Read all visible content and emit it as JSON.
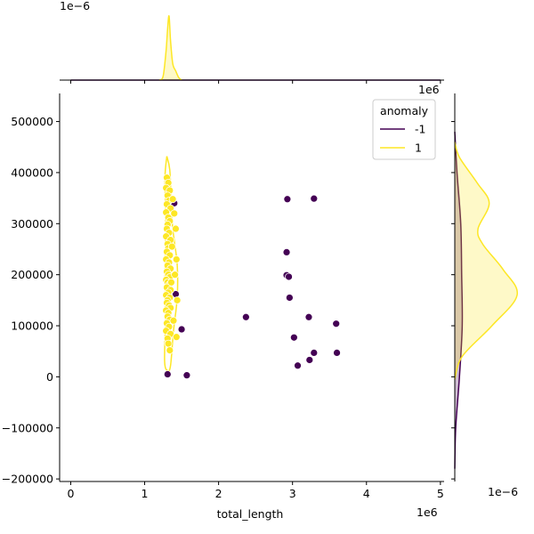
{
  "chart_data": {
    "type": "scatter",
    "kind": "jointplot with marginal KDE",
    "xlabel": "total_length",
    "ylabel": "",
    "xlim": [
      -150000,
      5050000
    ],
    "ylim": [
      -205000,
      555000
    ],
    "x_ticks": [
      0,
      1000000,
      2000000,
      3000000,
      4000000,
      5000000
    ],
    "x_tick_labels": [
      "0",
      "1",
      "2",
      "3",
      "4",
      "5"
    ],
    "x_offset_text": "1e6",
    "y_ticks": [
      -200000,
      -100000,
      0,
      100000,
      200000,
      300000,
      400000,
      500000
    ],
    "y_tick_labels": [
      "−200000",
      "−100000",
      "0",
      "100000",
      "200000",
      "300000",
      "400000",
      "500000"
    ],
    "top_marginal_offset_text": "1e−6",
    "right_marginal_top_offset_text": "1e6",
    "right_marginal_bottom_offset_text": "1e−6",
    "grid": false,
    "legend": {
      "title": "anomaly",
      "placement": "top-right",
      "entries": [
        {
          "label": "-1",
          "color": "#440154"
        },
        {
          "label": "1",
          "color": "#fde725"
        }
      ]
    },
    "series": [
      {
        "name": "-1",
        "color": "#440154",
        "points": [
          [
            1310000,
            5000
          ],
          [
            1570000,
            3000
          ],
          [
            1420000,
            162000
          ],
          [
            1500000,
            93000
          ],
          [
            1400000,
            340000
          ],
          [
            2370000,
            117000
          ],
          [
            2930000,
            348000
          ],
          [
            3290000,
            349000
          ],
          [
            2920000,
            244000
          ],
          [
            2920000,
            199000
          ],
          [
            2950000,
            196000
          ],
          [
            2960000,
            155000
          ],
          [
            3020000,
            77000
          ],
          [
            3220000,
            117000
          ],
          [
            3590000,
            104000
          ],
          [
            3070000,
            22000
          ],
          [
            3230000,
            33000
          ],
          [
            3290000,
            47000
          ],
          [
            3600000,
            47000
          ]
        ]
      },
      {
        "name": "1",
        "color": "#fde725",
        "points": [
          [
            1300000,
            390000
          ],
          [
            1320000,
            380000
          ],
          [
            1290000,
            370000
          ],
          [
            1340000,
            365000
          ],
          [
            1310000,
            355000
          ],
          [
            1330000,
            345000
          ],
          [
            1300000,
            338000
          ],
          [
            1350000,
            330000
          ],
          [
            1290000,
            322000
          ],
          [
            1320000,
            312000
          ],
          [
            1340000,
            305000
          ],
          [
            1310000,
            298000
          ],
          [
            1300000,
            290000
          ],
          [
            1330000,
            282000
          ],
          [
            1290000,
            275000
          ],
          [
            1350000,
            268000
          ],
          [
            1310000,
            260000
          ],
          [
            1320000,
            252000
          ],
          [
            1300000,
            245000
          ],
          [
            1340000,
            238000
          ],
          [
            1290000,
            230000
          ],
          [
            1330000,
            224000
          ],
          [
            1310000,
            218000
          ],
          [
            1350000,
            212000
          ],
          [
            1300000,
            206000
          ],
          [
            1320000,
            200000
          ],
          [
            1340000,
            195000
          ],
          [
            1290000,
            190000
          ],
          [
            1310000,
            185000
          ],
          [
            1330000,
            180000
          ],
          [
            1300000,
            175000
          ],
          [
            1350000,
            170000
          ],
          [
            1320000,
            165000
          ],
          [
            1290000,
            160000
          ],
          [
            1340000,
            155000
          ],
          [
            1310000,
            150000
          ],
          [
            1300000,
            145000
          ],
          [
            1330000,
            140000
          ],
          [
            1350000,
            135000
          ],
          [
            1290000,
            130000
          ],
          [
            1320000,
            125000
          ],
          [
            1310000,
            118000
          ],
          [
            1340000,
            112000
          ],
          [
            1300000,
            105000
          ],
          [
            1330000,
            98000
          ],
          [
            1290000,
            90000
          ],
          [
            1350000,
            84000
          ],
          [
            1310000,
            75000
          ],
          [
            1320000,
            65000
          ],
          [
            1340000,
            52000
          ],
          [
            1380000,
            348000
          ],
          [
            1400000,
            320000
          ],
          [
            1420000,
            290000
          ],
          [
            1430000,
            230000
          ],
          [
            1410000,
            200000
          ],
          [
            1440000,
            150000
          ],
          [
            1390000,
            110000
          ],
          [
            1430000,
            78000
          ],
          [
            1370000,
            255000
          ],
          [
            1360000,
            185000
          ]
        ]
      }
    ],
    "x_marginal_kde": {
      "series": [
        {
          "name": "-1",
          "color": "#440154",
          "x": [
            0,
            1000000,
            2000000,
            3000000,
            4000000,
            5000000
          ],
          "density": [
            0.0,
            0.0003,
            0.0003,
            0.0006,
            0.0003,
            0.0
          ]
        },
        {
          "name": "1",
          "color": "#fde725",
          "x": [
            1200000,
            1250000,
            1290000,
            1310000,
            1330000,
            1350000,
            1380000,
            1420000,
            1460000,
            1500000
          ],
          "density": [
            0.0,
            0.12,
            0.9,
            1.55,
            1.95,
            1.2,
            0.5,
            0.28,
            0.08,
            0.0
          ]
        }
      ]
    },
    "y_marginal_kde": {
      "series": [
        {
          "name": "-1",
          "color": "#440154",
          "y": [
            -180000,
            -100000,
            0,
            100000,
            200000,
            300000,
            400000,
            480000
          ],
          "density": [
            0.0,
            0.05,
            0.25,
            0.4,
            0.37,
            0.32,
            0.12,
            0.0
          ]
        },
        {
          "name": "1",
          "color": "#fde725",
          "y": [
            -5000,
            40000,
            100000,
            160000,
            210000,
            260000,
            290000,
            340000,
            380000,
            430000,
            460000
          ],
          "density": [
            0.0,
            0.4,
            2.0,
            3.35,
            2.6,
            1.5,
            1.25,
            1.85,
            1.2,
            0.25,
            0.0
          ]
        }
      ]
    }
  }
}
